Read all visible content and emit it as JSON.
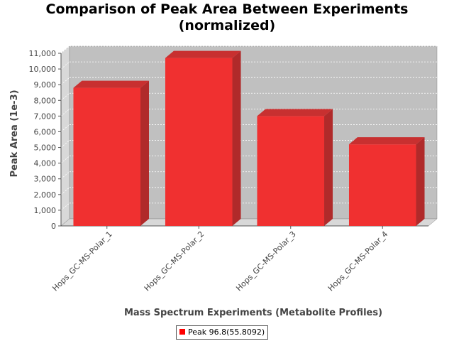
{
  "chart_data": {
    "type": "bar",
    "title": "Comparison of Peak Area Between Experiments",
    "subtitle": "(normalized)",
    "xlabel": "Mass Spectrum Experiments (Metabolite Profiles)",
    "ylabel": "Peak Area (1e-3)",
    "categories": [
      "Hops_GC-MS-Polar_1",
      "Hops_GC-MS-Polar_2",
      "Hops_GC-MS-Polar_3",
      "Hops_GC-MS-Polar_4"
    ],
    "series": [
      {
        "name": "Peak 96.8(55.8092)",
        "values": [
          8800,
          10700,
          7000,
          5200
        ]
      }
    ],
    "ylim": [
      0,
      11000
    ],
    "yticks": [
      0,
      1000,
      2000,
      3000,
      4000,
      5000,
      6000,
      7000,
      8000,
      9000,
      10000,
      11000
    ],
    "ytick_labels": [
      "0",
      "1,000",
      "2,000",
      "3,000",
      "4,000",
      "5,000",
      "6,000",
      "7,000",
      "8,000",
      "9,000",
      "10,000",
      "11,000"
    ],
    "grid": true,
    "three_d": true,
    "legend_position": "bottom",
    "colors": {
      "bar_front": "#f03030",
      "bar_side": "#b02a2a",
      "bar_top": "#c83030",
      "plot_back": "#c0c0c0",
      "plot_floor": "#d8d8d8",
      "grid": "#ffffff",
      "legend_swatch": "#ff0000"
    }
  }
}
